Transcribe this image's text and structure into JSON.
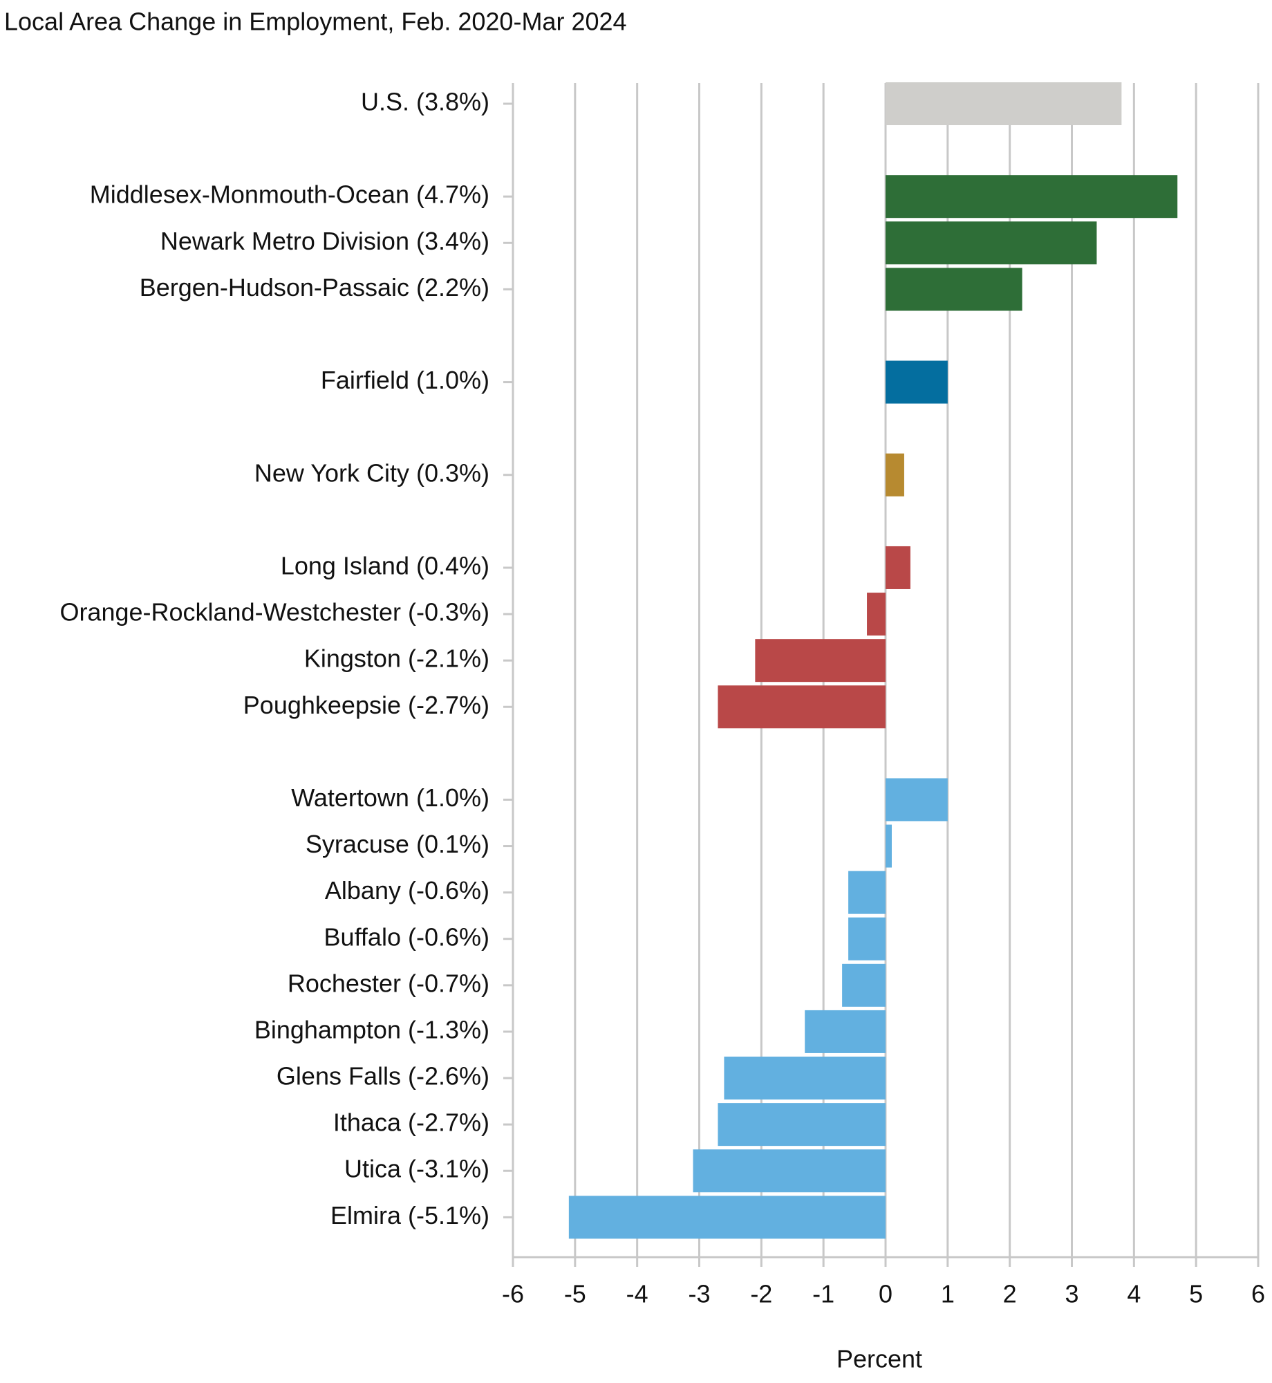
{
  "chart_data": {
    "type": "bar",
    "orientation": "horizontal",
    "title": "Local Area Change in Employment, Feb. 2020-Mar 2024",
    "xlabel": "Percent",
    "categories": [
      "U.S. (3.8%)",
      "Middlesex-Monmouth-Ocean (4.7%)",
      "Newark Metro Division (3.4%)",
      "Bergen-Hudson-Passaic (2.2%)",
      "Fairfield (1.0%)",
      "New York City (0.3%)",
      "Long Island (0.4%)",
      "Orange-Rockland-Westchester (-0.3%)",
      "Kingston (-2.1%)",
      "Poughkeepsie (-2.7%)",
      "Watertown (1.0%)",
      "Syracuse (0.1%)",
      "Albany (-0.6%)",
      "Buffalo (-0.6%)",
      "Rochester (-0.7%)",
      "Binghampton (-1.3%)",
      "Glens Falls (-2.6%)",
      "Ithaca (-2.7%)",
      "Utica (-3.1%)",
      "Elmira (-5.1%)"
    ],
    "values": [
      3.8,
      4.7,
      3.4,
      2.2,
      1.0,
      0.3,
      0.4,
      -0.3,
      -2.1,
      -2.7,
      1.0,
      0.1,
      -0.6,
      -0.6,
      -0.7,
      -1.3,
      -2.6,
      -2.7,
      -3.1,
      -5.1
    ],
    "colors": [
      "#cfcecb",
      "#2e6e37",
      "#2e6e37",
      "#2e6e37",
      "#046e9f",
      "#b78a30",
      "#b94848",
      "#b94848",
      "#b94848",
      "#b94848",
      "#62b0e0",
      "#62b0e0",
      "#62b0e0",
      "#62b0e0",
      "#62b0e0",
      "#62b0e0",
      "#62b0e0",
      "#62b0e0",
      "#62b0e0",
      "#62b0e0"
    ],
    "xlim": [
      -6,
      6
    ],
    "xticks": [
      -6,
      -5,
      -4,
      -3,
      -2,
      -1,
      0,
      1,
      2,
      3,
      4,
      5,
      6
    ],
    "grid": true
  }
}
